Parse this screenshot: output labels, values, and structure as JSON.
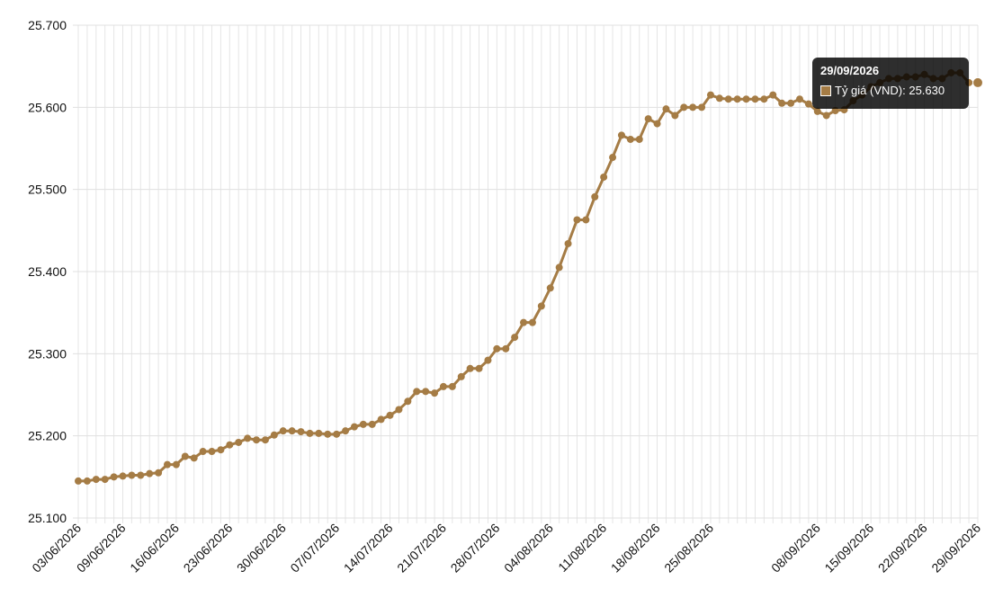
{
  "chart_data": {
    "type": "line",
    "title": "",
    "xlabel": "",
    "ylabel": "",
    "ylim": [
      25100,
      25700
    ],
    "y_ticks": [
      "25.100",
      "25.200",
      "25.300",
      "25.400",
      "25.500",
      "25.600",
      "25.700"
    ],
    "x_tick_labels": [
      "03/06/2026",
      "09/06/2026",
      "16/06/2026",
      "23/06/2026",
      "30/06/2026",
      "07/07/2026",
      "14/07/2026",
      "21/07/2026",
      "28/07/2026",
      "04/08/2026",
      "11/08/2026",
      "18/08/2026",
      "25/08/2026",
      "08/09/2026",
      "15/09/2026",
      "22/09/2026",
      "29/09/2026"
    ],
    "grid": true,
    "line_color": "#a57c45",
    "series": [
      {
        "name": "Tỷ giá (VND)",
        "x": [
          "03/06/2026",
          "04/06/2026",
          "05/06/2026",
          "06/06/2026",
          "08/06/2026",
          "09/06/2026",
          "10/06/2026",
          "11/06/2026",
          "12/06/2026",
          "13/06/2026",
          "15/06/2026",
          "16/06/2026",
          "17/06/2026",
          "18/06/2026",
          "19/06/2026",
          "20/06/2026",
          "22/06/2026",
          "23/06/2026",
          "24/06/2026",
          "25/06/2026",
          "26/06/2026",
          "27/06/2026",
          "29/06/2026",
          "30/06/2026",
          "01/07/2026",
          "02/07/2026",
          "03/07/2026",
          "04/07/2026",
          "06/07/2026",
          "07/07/2026",
          "08/07/2026",
          "09/07/2026",
          "10/07/2026",
          "11/07/2026",
          "13/07/2026",
          "14/07/2026",
          "15/07/2026",
          "16/07/2026",
          "17/07/2026",
          "18/07/2026",
          "20/07/2026",
          "21/07/2026",
          "22/07/2026",
          "23/07/2026",
          "24/07/2026",
          "25/07/2026",
          "27/07/2026",
          "28/07/2026",
          "29/07/2026",
          "30/07/2026",
          "31/07/2026",
          "01/08/2026",
          "03/08/2026",
          "04/08/2026",
          "05/08/2026",
          "06/08/2026",
          "07/08/2026",
          "08/08/2026",
          "10/08/2026",
          "11/08/2026",
          "12/08/2026",
          "13/08/2026",
          "14/08/2026",
          "15/08/2026",
          "17/08/2026",
          "18/08/2026",
          "19/08/2026",
          "20/08/2026",
          "21/08/2026",
          "22/08/2026",
          "24/08/2026",
          "25/08/2026",
          "26/08/2026",
          "27/08/2026",
          "28/08/2026",
          "29/08/2026",
          "31/08/2026",
          "01/09/2026",
          "02/09/2026",
          "03/09/2026",
          "04/09/2026",
          "05/09/2026",
          "07/09/2026",
          "08/09/2026",
          "09/09/2026",
          "10/09/2026",
          "11/09/2026",
          "12/09/2026",
          "14/09/2026",
          "15/09/2026",
          "16/09/2026",
          "17/09/2026",
          "18/09/2026",
          "19/09/2026",
          "21/09/2026",
          "22/09/2026",
          "23/09/2026",
          "24/09/2026",
          "25/09/2026",
          "26/09/2026",
          "28/09/2026",
          "29/09/2026"
        ],
        "values": [
          25145,
          25145,
          25147,
          25147,
          25150,
          25151,
          25152,
          25152,
          25154,
          25155,
          25165,
          25165,
          25175,
          25173,
          25181,
          25181,
          25183,
          25189,
          25192,
          25197,
          25195,
          25195,
          25201,
          25206,
          25206,
          25205,
          25203,
          25203,
          25202,
          25202,
          25206,
          25211,
          25214,
          25214,
          25220,
          25225,
          25232,
          25242,
          25254,
          25254,
          25252,
          25260,
          25260,
          25272,
          25282,
          25282,
          25292,
          25306,
          25306,
          25320,
          25338,
          25338,
          25358,
          25380,
          25405,
          25434,
          25463,
          25463,
          25491,
          25515,
          25539,
          25566,
          25561,
          25561,
          25586,
          25580,
          25598,
          25590,
          25600,
          25600,
          25600,
          25615,
          25611,
          25610,
          25610,
          25610,
          25610,
          25610,
          25615,
          25605,
          25605,
          25610,
          25604,
          25595,
          25590,
          25596,
          25597,
          25608,
          25615,
          25625,
          25630,
          25635,
          25635,
          25637,
          25637,
          25640,
          25635,
          25635,
          25642,
          25642,
          25630,
          25630
        ]
      }
    ]
  },
  "tooltip": {
    "date": "29/09/2026",
    "label": "Tỷ giá (VND): 25.630"
  }
}
